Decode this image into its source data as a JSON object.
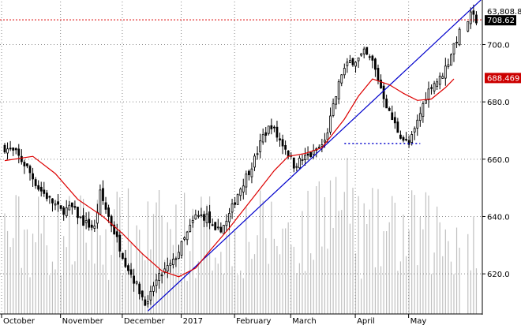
{
  "chart_data": {
    "type": "candlestick",
    "y_axis": {
      "ticks": [
        620,
        640,
        660,
        680,
        700
      ],
      "tick_labels": [
        "620.0",
        "640.0",
        "660.0",
        "680.0",
        "700.0"
      ],
      "range": [
        606,
        715
      ]
    },
    "x_axis": {
      "months": [
        {
          "label": "October",
          "index": 0
        },
        {
          "label": "November",
          "index": 21
        },
        {
          "label": "December",
          "index": 43
        },
        {
          "label": "2017",
          "index": 64
        },
        {
          "label": "February",
          "index": 83
        },
        {
          "label": "March",
          "index": 103
        },
        {
          "label": "April",
          "index": 126
        },
        {
          "label": "May",
          "index": 145
        }
      ],
      "index_range": [
        0,
        169
      ]
    },
    "price_labels": {
      "volume": "63,808.84",
      "last_price": "708.62",
      "moving_average": "688.469"
    },
    "levels": {
      "last_price_level": 708.62,
      "moving_average_level": 688.469,
      "support_level": 665.5,
      "support_range": [
        121,
        148
      ]
    },
    "trendline": {
      "start": [
        51,
        607
      ],
      "end": [
        169,
        715
      ]
    },
    "moving_average_series": [
      [
        0,
        659.5
      ],
      [
        10,
        661
      ],
      [
        18,
        655
      ],
      [
        26,
        646
      ],
      [
        35,
        640
      ],
      [
        42,
        634
      ],
      [
        49,
        627
      ],
      [
        56,
        621
      ],
      [
        62,
        619
      ],
      [
        68,
        622
      ],
      [
        73,
        628
      ],
      [
        80,
        636
      ],
      [
        88,
        646
      ],
      [
        96,
        656
      ],
      [
        101,
        661
      ],
      [
        107,
        662
      ],
      [
        113,
        664
      ],
      [
        121,
        674
      ],
      [
        126,
        682
      ],
      [
        131,
        688
      ],
      [
        137,
        686
      ],
      [
        142,
        683
      ],
      [
        147,
        680.5
      ],
      [
        152,
        681
      ],
      [
        157,
        685
      ],
      [
        160,
        688
      ]
    ],
    "colors": {
      "candles": "#000000",
      "trendline": "#0000cc",
      "moving_average": "#dd0000",
      "volume_bars": "#c0c0c0",
      "last_price_tag": "#000000",
      "moving_average_tag": "#cc0000",
      "support_line": "#0000cc",
      "grid": "#888888"
    },
    "grid": true
  }
}
